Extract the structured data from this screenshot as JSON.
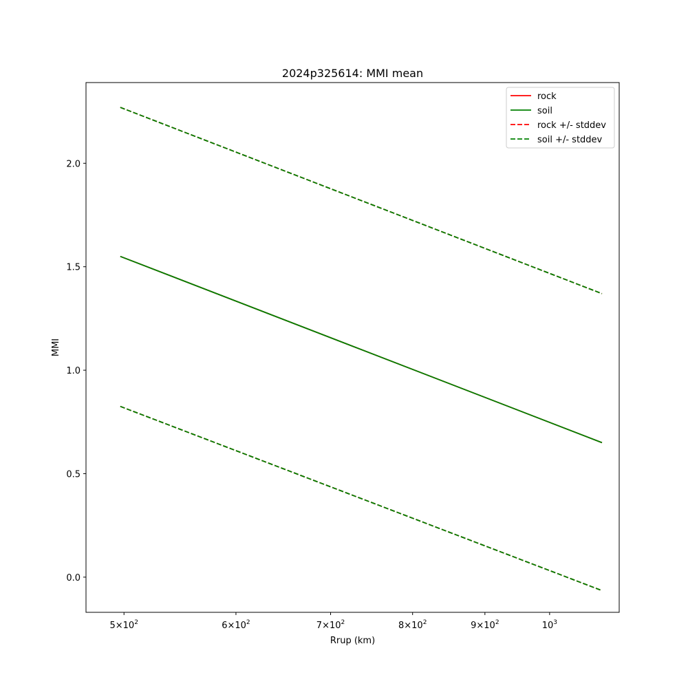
{
  "chart_data": {
    "type": "line",
    "title": "2024p325614: MMI mean",
    "xlabel": "Rrup (km)",
    "ylabel": "MMI",
    "xscale": "log",
    "xlim": [
      470,
      1120
    ],
    "ylim": [
      -0.17,
      2.39
    ],
    "x_ticks": [
      {
        "value": 500,
        "base": "5×10",
        "exp": "2"
      },
      {
        "value": 600,
        "base": "6×10",
        "exp": "2"
      },
      {
        "value": 700,
        "base": "7×10",
        "exp": "2"
      },
      {
        "value": 800,
        "base": "8×10",
        "exp": "2"
      },
      {
        "value": 900,
        "base": "9×10",
        "exp": "2"
      },
      {
        "value": 1000,
        "base": "10",
        "exp": "3"
      }
    ],
    "y_ticks": [
      {
        "value": 0.0,
        "label": "0.0"
      },
      {
        "value": 0.5,
        "label": "0.5"
      },
      {
        "value": 1.0,
        "label": "1.0"
      },
      {
        "value": 1.5,
        "label": "1.5"
      },
      {
        "value": 2.0,
        "label": "2.0"
      }
    ],
    "x": [
      497,
      1089
    ],
    "series": [
      {
        "name": "rock",
        "style": "solid",
        "color": "#ff0000",
        "values": [
          1.55,
          0.65
        ]
      },
      {
        "name": "soil",
        "style": "solid",
        "color": "#008000",
        "values": [
          1.55,
          0.65
        ]
      },
      {
        "name": "rock +/- stddev",
        "style": "dashed",
        "color": "#ff0000",
        "values": [
          2.27,
          1.37
        ],
        "values_lower": [
          0.825,
          -0.065
        ]
      },
      {
        "name": "soil +/- stddev",
        "style": "dashed",
        "color": "#008000",
        "values": [
          2.27,
          1.37
        ],
        "values_lower": [
          0.825,
          -0.065
        ]
      }
    ],
    "legend_position": "top-right",
    "grid": false
  }
}
